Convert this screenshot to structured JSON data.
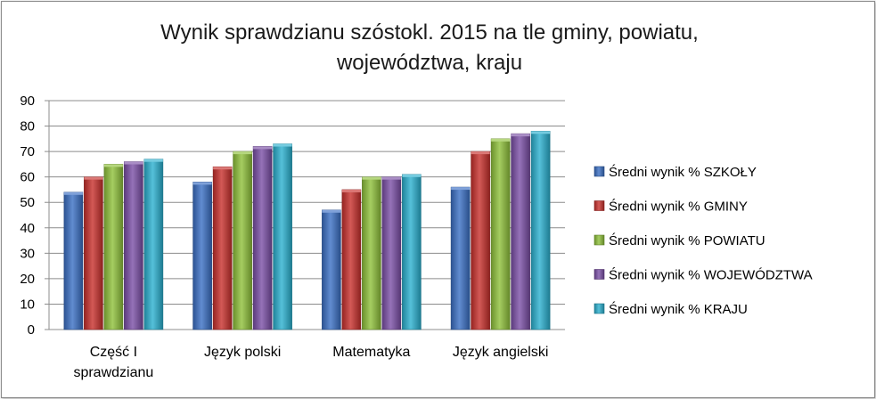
{
  "chart_data": {
    "type": "bar",
    "title": "Wynik sprawdzianu szóstokl. 2015 na tle gminy, powiatu, województwa, kraju",
    "title_lines": [
      "Wynik sprawdzianu szóstokl. 2015 na tle gminy, powiatu,",
      "województwa, kraju"
    ],
    "categories": [
      [
        "Część I",
        "sprawdzianu"
      ],
      [
        "Język polski"
      ],
      [
        "Matematyka"
      ],
      [
        "Język angielski"
      ]
    ],
    "series": [
      {
        "name": "Średni wynik % SZKOŁY",
        "color": "#3a6fc4",
        "values": [
          54,
          58,
          47,
          56
        ]
      },
      {
        "name": "Średni wynik % GMINY",
        "color": "#c8302c",
        "values": [
          60,
          64,
          55,
          70
        ]
      },
      {
        "name": "Średni wynik % POWIATU",
        "color": "#8fc13a",
        "values": [
          65,
          70,
          60,
          75
        ]
      },
      {
        "name": "Średni wynik % WOJEWÓDZTWA",
        "color": "#7b4fa6",
        "values": [
          66,
          72,
          60,
          77
        ]
      },
      {
        "name": "Średni wynik % KRAJU",
        "color": "#2ab0cf",
        "values": [
          67,
          73,
          61,
          78
        ]
      }
    ],
    "ylim": [
      0,
      90
    ],
    "yticks": [
      0,
      10,
      20,
      30,
      40,
      50,
      60,
      70,
      80,
      90
    ],
    "grid": true,
    "legend": "right"
  }
}
